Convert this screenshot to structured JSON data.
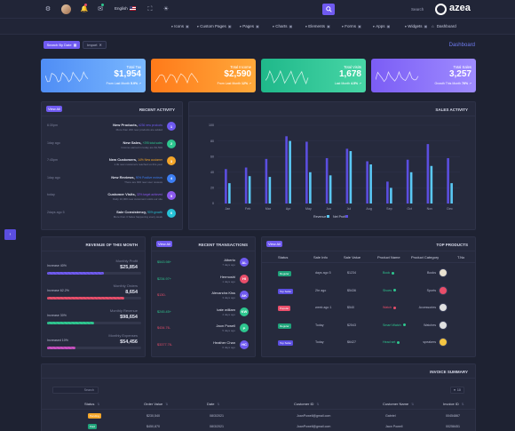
{
  "topbar": {
    "language": "English",
    "search_placeholder": "Search",
    "brand": "azea"
  },
  "nav": {
    "items": [
      {
        "label": "Icons",
        "icon": "chevron-down-icon"
      },
      {
        "label": "Custom Pages",
        "icon": "chevron-down-icon"
      },
      {
        "label": "Pages",
        "icon": "chevron-down-icon"
      },
      {
        "label": "Charts",
        "icon": "chevron-down-icon"
      },
      {
        "label": "Elements",
        "icon": "chevron-down-icon"
      },
      {
        "label": "Forms",
        "icon": "chevron-down-icon"
      },
      {
        "label": "Apps",
        "icon": "chevron-down-icon"
      },
      {
        "label": "Widgets",
        "icon": "chevron-down-icon"
      },
      {
        "label": "Dashboard",
        "icon": "home-icon"
      }
    ]
  },
  "toolbar": {
    "search_by_date": "Search By Date",
    "import": "Import",
    "page_title": "Dashboard"
  },
  "stats": [
    {
      "title": "Total Tax",
      "value": "$1,954",
      "sub_label": "From Last Month",
      "sub_value": "5.9%",
      "color_from": "#4f8df5",
      "color_to": "#7ab8ff"
    },
    {
      "title": "Total Income",
      "value": "$2,590",
      "sub_label": "From Last Month",
      "sub_value": "12%",
      "color_from": "#ff7a1a",
      "color_to": "#ffa93b"
    },
    {
      "title": "Total Visits",
      "value": "1,678",
      "sub_label": "Last Month",
      "sub_value": "4.5%",
      "color_from": "#1fb88a",
      "color_to": "#48d6a6"
    },
    {
      "title": "Total Sales",
      "value": "3,257",
      "sub_label": "Growth This Month",
      "sub_value": "76%",
      "color_from": "#7b5df5",
      "color_to": "#9f8cff"
    }
  ],
  "recent_activity": {
    "view_all": "View All",
    "title": "RECENT ACTIVITY",
    "items": [
      {
        "time": "6:30pm",
        "title": "New Products,",
        "tag": "#236 new products",
        "desc": "More than 200 new products are added",
        "num": "1",
        "color": "#6f5af0"
      },
      {
        "time": "1day ago",
        "title": "New Sales,",
        "tag": "+295 total sales",
        "desc": "Income earned in today are $1,500",
        "num": "2",
        "color": "#2ec78f"
      },
      {
        "time": "7:45pm",
        "title": "New Customers,",
        "tag": "14% New customer",
        "desc": "1.3k new customers reached us this year",
        "num": "3",
        "color": "#f4a62a"
      },
      {
        "time": "1day ago",
        "title": "New Reviews,",
        "tag": "90% Positive reviews",
        "desc": "There are 900 new user reviews",
        "num": "4",
        "color": "#3d7ff4"
      },
      {
        "time": "today",
        "title": "Customer Visits,",
        "tag": "32% target achieved",
        "desc": "Daily 10,000 new customers visits our site",
        "num": "5",
        "color": "#8c5af0"
      },
      {
        "time": "2days ago 5",
        "title": "Sale Consistency,",
        "tag": "90% growth",
        "desc": "More than 3 Sales happening every week",
        "num": "6",
        "color": "#27c3d8"
      }
    ]
  },
  "sales_activity": {
    "title": "SALES ACTIVITY",
    "legend": [
      "Revenue",
      "Net Profit"
    ]
  },
  "chart_data": {
    "type": "bar",
    "categories": [
      "Jan",
      "Feb",
      "Mar",
      "Apr",
      "May",
      "Jun",
      "Jul",
      "Aug",
      "Sep",
      "Oct",
      "Nov",
      "Dec"
    ],
    "series": [
      {
        "name": "Revenue",
        "color": "#5b4ee0",
        "values": [
          44,
          46,
          57,
          86,
          79,
          58,
          70,
          54,
          28,
          56,
          76,
          58
        ]
      },
      {
        "name": "Net Profit",
        "color": "#5ac8f5",
        "values": [
          26,
          35,
          34,
          80,
          40,
          36,
          67,
          50,
          20,
          40,
          48,
          26
        ]
      }
    ],
    "ylim": [
      0,
      100
    ],
    "yticks": [
      "0",
      "20",
      "40",
      "60",
      "80",
      "100"
    ],
    "grid": true,
    "legend_position": "bottom"
  },
  "revenue_month": {
    "title": "REVENUE OF THIS MONTH",
    "items": [
      {
        "label": "Monthly Profit",
        "value": "$25,854",
        "badge": "Increase 40%",
        "percent": 40,
        "color": "#6f5af0"
      },
      {
        "label": "Monthly Orders",
        "value": "8,654",
        "badge": "Increase 62.2%",
        "percent": 62,
        "color": "#e94e6a"
      },
      {
        "label": "Monthly Revenue",
        "value": "$98,654",
        "badge": "Increase 30%",
        "percent": 30,
        "color": "#2ec78f"
      },
      {
        "label": "Monthly Expenses",
        "value": "$54,456",
        "badge": "Increased 10%",
        "percent": 10,
        "color": "#c850c0"
      }
    ]
  },
  "recent_transactions": {
    "view_all": "View All",
    "title": "RECENT TRANSACTIONS",
    "items": [
      {
        "amount": "$543.98+",
        "name": "Alberto",
        "time": "7 days ago",
        "initials": "AL",
        "color": "#6f5af0",
        "amount_color": "#2ec78f"
      },
      {
        "amount": "$234.97+",
        "name": "Hermoshi",
        "time": "1 days ago",
        "initials": "HI",
        "color": "#e94e6a",
        "amount_color": "#2ec78f"
      },
      {
        "amount": "$130-",
        "name": "Alexandra Kiss",
        "time": "3 days ago",
        "initials": "AK",
        "color": "#6f5af0",
        "amount_color": "#e94e6a"
      },
      {
        "amount": "$245.45+",
        "name": "kate william",
        "time": "4 days ago",
        "initials": "KW",
        "color": "#2ec78f",
        "amount_color": "#2ec78f"
      },
      {
        "amount": "$434.76-",
        "name": "Jaon Powell",
        "time": "5 days ago",
        "initials": "P",
        "color": "#2ec78f",
        "amount_color": "#e94e6a"
      },
      {
        "amount": "$3377.76-",
        "name": "Heather Chan",
        "time": "6 days ago",
        "initials": "HC",
        "color": "#6f5af0",
        "amount_color": "#e94e6a"
      }
    ]
  },
  "top_products": {
    "view_all": "View All",
    "title": "TOP PRODUCTS",
    "columns": [
      "Status",
      "Sale Info",
      "Sale Value",
      "Product Name",
      "Product Category",
      "T.No"
    ],
    "rows": [
      {
        "status": "Regular",
        "status_color": "#1fa37a",
        "info": "days ago 5",
        "value": "$1234",
        "product": "Book",
        "dot": "#2ec78f",
        "category": "Books",
        "icon_color": "#e9e2d0"
      },
      {
        "status": "Top Seller",
        "status_color": "#5b4ee0",
        "info": "2hr ago",
        "value": "$5436",
        "product": "Shoes",
        "dot": "#2ec78f",
        "category": "Sports",
        "icon_color": "#e94e6a"
      },
      {
        "status": "Popular",
        "status_color": "#e94e6a",
        "info": "week ago 1",
        "value": "$540",
        "product": "Watch",
        "dot": "#e94e6a",
        "category": "Accessories",
        "icon_color": "#e0e0e0"
      },
      {
        "status": "Regular",
        "status_color": "#1fa37a",
        "info": "Today",
        "value": "$2543",
        "product": "Smart Watch",
        "dot": "#2ec78f",
        "category": "Watches",
        "icon_color": "#e0e0e0"
      },
      {
        "status": "Top Seller",
        "status_color": "#5b4ee0",
        "info": "Today",
        "value": "$6427",
        "product": "Head set",
        "dot": "#2ec78f",
        "category": "speakers",
        "icon_color": "#f4c542"
      }
    ]
  },
  "invoice": {
    "title": "INVOICE SUMMARY",
    "search_placeholder": "Search",
    "page_size": "10",
    "columns": [
      "Status",
      "Order Value",
      "Date",
      "Customer ID",
      "Customer Name",
      "Invoice ID"
    ],
    "rows": [
      {
        "status": "Pending",
        "status_color": "#f4a62a",
        "value": "$230,540",
        "date": "08/3/2021",
        "email": "JoanPowell@gmail.com",
        "name": "Gabriel",
        "id": "00454867"
      },
      {
        "status": "Paid",
        "status_color": "#1fa37a",
        "value": "$450,870",
        "date": "08/3/2021",
        "email": "JoanPowell@gmail.com",
        "name": "Jaon Powell",
        "id": "00258451"
      }
    ]
  }
}
